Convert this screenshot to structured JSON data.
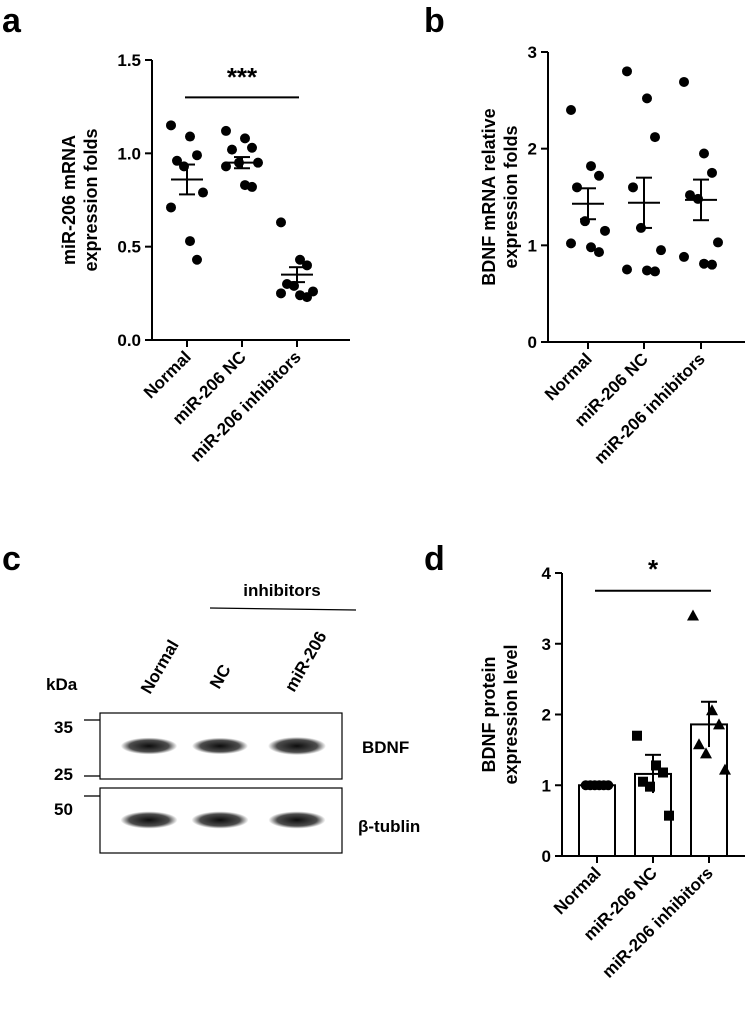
{
  "panels": {
    "a": {
      "letter": "a"
    },
    "b": {
      "letter": "b"
    },
    "c": {
      "letter": "c"
    },
    "d": {
      "letter": "d"
    }
  },
  "chart_data": [
    {
      "panel": "a",
      "type": "scatter",
      "ylabel": [
        "miR-206 mRNA",
        "expression folds"
      ],
      "ylim": [
        0,
        1.5
      ],
      "yticks": [
        "0.0",
        "0.5",
        "1.0",
        "1.5"
      ],
      "categories": [
        "Normal",
        "miR-206 NC",
        "miR-206 inhibitors"
      ],
      "points": [
        [
          1.15,
          1.09,
          0.99,
          0.96,
          0.93,
          0.79,
          0.71,
          0.53,
          0.43
        ],
        [
          1.12,
          1.08,
          1.03,
          1.02,
          0.95,
          0.95,
          0.93,
          0.83,
          0.82
        ],
        [
          0.63,
          0.43,
          0.4,
          0.3,
          0.29,
          0.26,
          0.25,
          0.24,
          0.23
        ]
      ],
      "means": [
        0.86,
        0.95,
        0.35
      ],
      "sem": [
        0.08,
        0.03,
        0.04
      ],
      "significance": {
        "label": "***",
        "from": 0,
        "to": 2,
        "y": 1.3
      },
      "grid": false
    },
    {
      "panel": "b",
      "type": "scatter",
      "ylabel": [
        "BDNF mRNA relative",
        "expression folds"
      ],
      "ylim": [
        0,
        3
      ],
      "yticks": [
        "0",
        "1",
        "2",
        "3"
      ],
      "categories": [
        "Normal",
        "miR-206 NC",
        "miR-206 inhibitors"
      ],
      "points": [
        [
          2.4,
          1.82,
          1.72,
          1.6,
          1.25,
          1.15,
          1.02,
          0.98,
          0.93
        ],
        [
          2.8,
          2.52,
          2.12,
          1.6,
          1.18,
          0.95,
          0.75,
          0.74,
          0.73
        ],
        [
          2.69,
          1.95,
          1.75,
          1.52,
          1.48,
          1.03,
          0.88,
          0.81,
          0.8
        ]
      ],
      "means": [
        1.43,
        1.44,
        1.47
      ],
      "sem": [
        0.16,
        0.26,
        0.21
      ],
      "grid": false
    },
    {
      "panel": "d",
      "type": "bar",
      "ylabel": [
        "BDNF protein",
        "expression level"
      ],
      "ylim": [
        0,
        4
      ],
      "yticks": [
        "0",
        "1",
        "2",
        "3",
        "4"
      ],
      "categories": [
        "Normal",
        "miR-206 NC",
        "miR-206 inhibitors"
      ],
      "values": [
        1.0,
        1.16,
        1.86
      ],
      "sem": [
        0.0,
        0.27,
        0.32
      ],
      "points": [
        [
          1.0,
          1.0,
          1.0,
          1.0,
          1.0,
          1.0
        ],
        [
          1.7,
          1.28,
          1.18,
          1.05,
          0.98,
          0.57
        ],
        [
          3.4,
          2.06,
          1.86,
          1.58,
          1.45,
          1.22
        ]
      ],
      "markers": [
        "circle",
        "square",
        "triangle"
      ],
      "significance": {
        "label": "*",
        "from": 0,
        "to": 2,
        "y": 3.75
      },
      "grid": false
    }
  ],
  "blot": {
    "kda_label": "kDa",
    "group_label": "inhibitors",
    "lanes": [
      "Normal",
      "NC",
      "miR-206"
    ],
    "markers": [
      "35",
      "25",
      "50"
    ],
    "rows": [
      {
        "label": "BDNF",
        "intensities": [
          0.85,
          0.8,
          1.0
        ]
      },
      {
        "label": "β-tublin",
        "intensities": [
          0.9,
          0.9,
          0.9
        ]
      }
    ]
  }
}
